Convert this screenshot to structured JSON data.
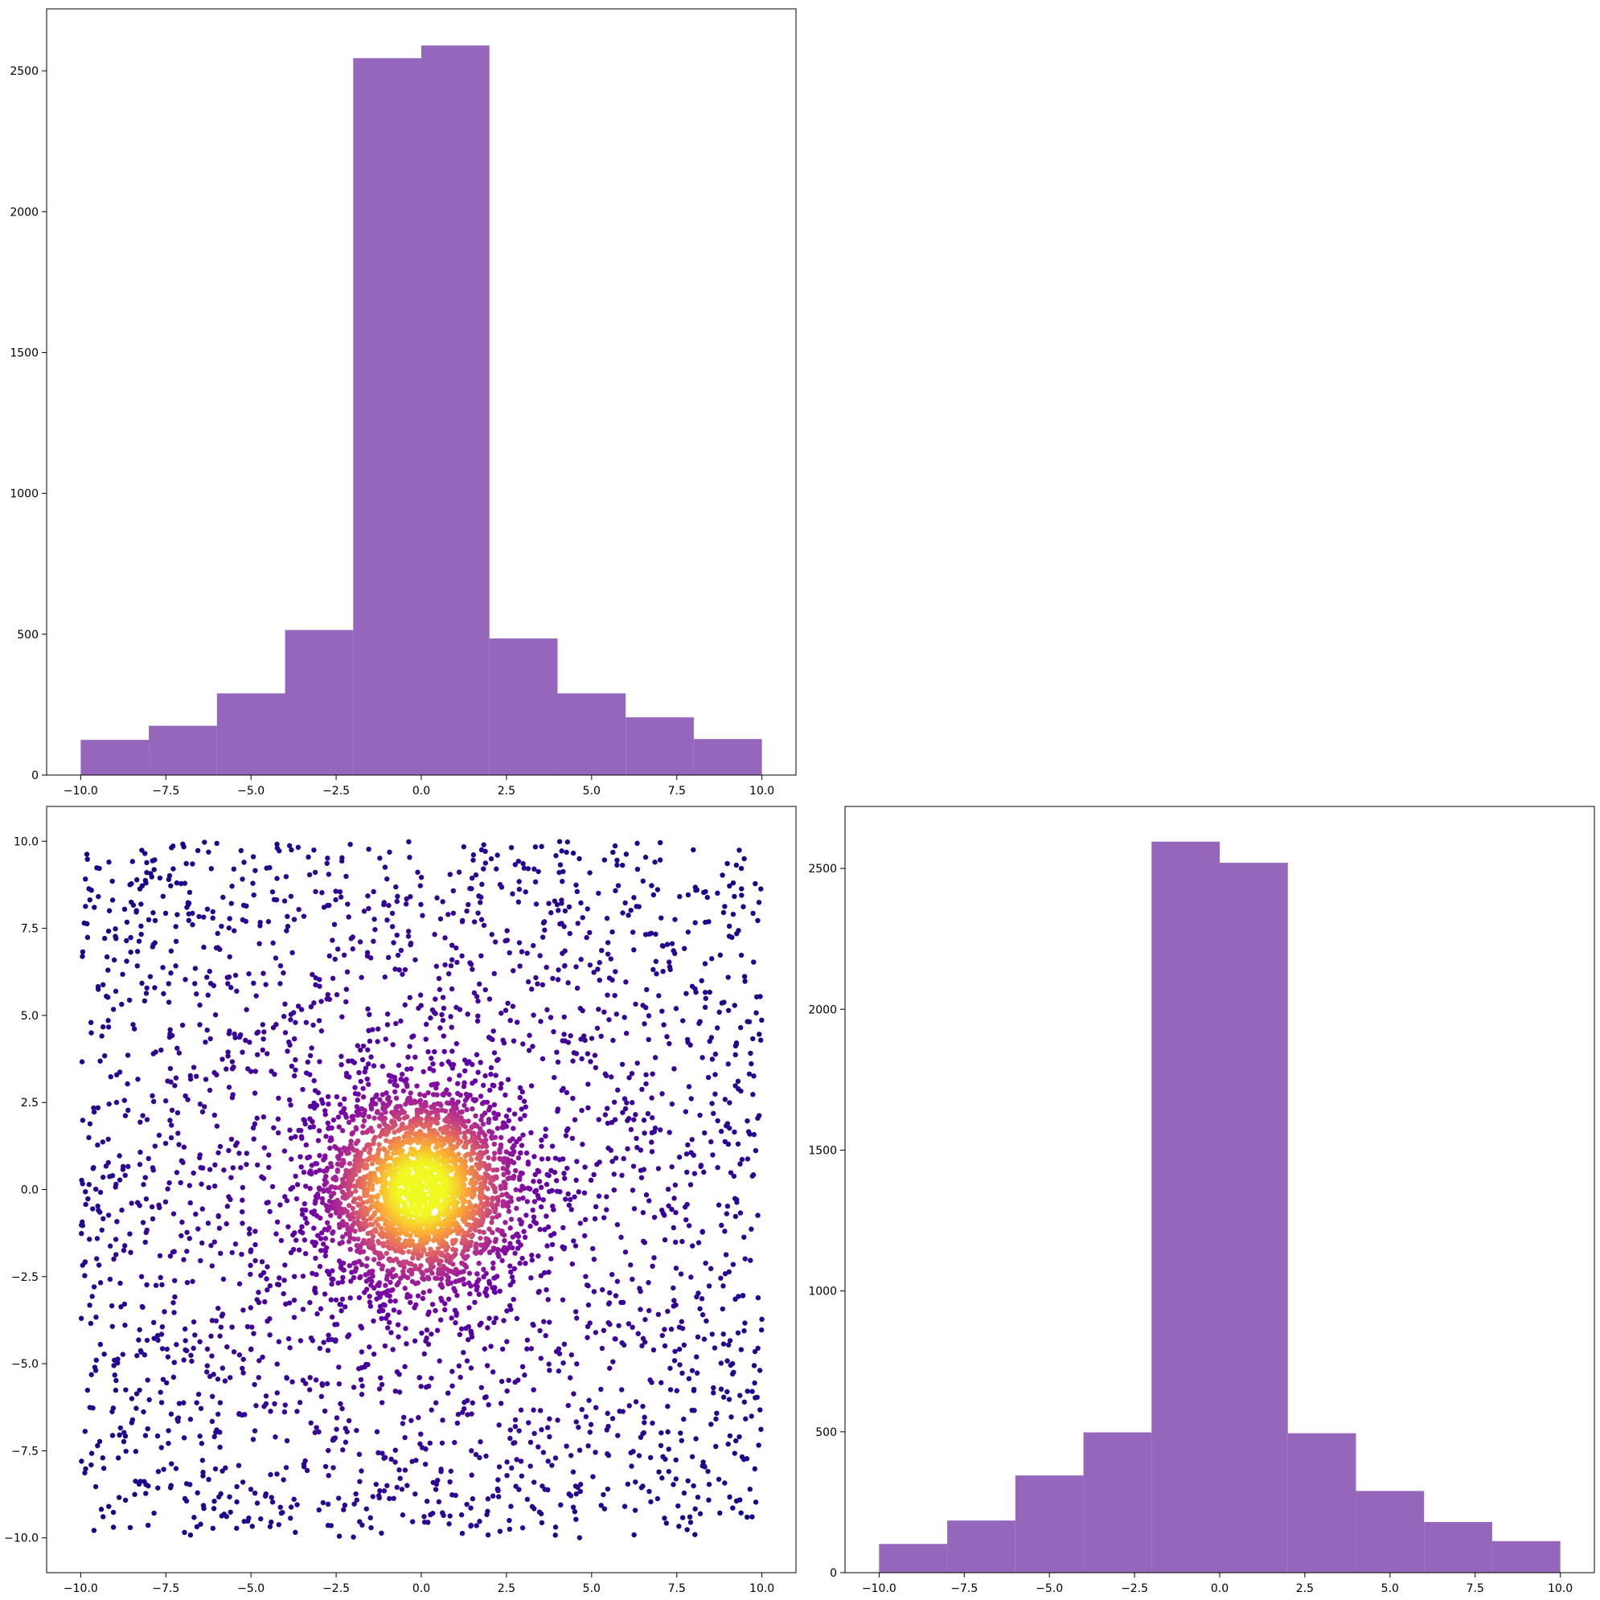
{
  "chart_data": [
    {
      "id": "hist-x",
      "type": "bar",
      "bin_edges": [
        -10,
        -8,
        -6,
        -4,
        -2,
        0,
        2,
        4,
        6,
        8,
        10
      ],
      "values": [
        125,
        175,
        290,
        515,
        2545,
        2590,
        485,
        290,
        205,
        128
      ],
      "color": "#9467bd",
      "xlim": [
        -11,
        11
      ],
      "ylim": [
        0,
        2720
      ],
      "xticks": [
        -10,
        -7.5,
        -5,
        -2.5,
        0,
        2.5,
        5,
        7.5,
        10
      ],
      "xtick_labels": [
        "−10.0",
        "−7.5",
        "−5.0",
        "−2.5",
        "0.0",
        "2.5",
        "5.0",
        "7.5",
        "10.0"
      ],
      "yticks": [
        0,
        500,
        1000,
        1500,
        2000,
        2500
      ],
      "ytick_labels": [
        "0",
        "500",
        "1000",
        "1500",
        "2000",
        "2500"
      ],
      "grid": false
    },
    {
      "id": "scatter-xy",
      "type": "scatter",
      "description_of_marks": "about 5000 points: dense Gaussian core centered at (0,0) plus uniform background over [-10,10]x[-10,10]; color by local density (plasma colormap, dark purple sparse to yellow dense)",
      "n_points": 5000,
      "cluster_center": [
        0,
        0
      ],
      "cluster_std": 1.5,
      "cluster_fraction": 0.5,
      "uniform_range": [
        -10,
        10
      ],
      "colormap": [
        "#0d0887",
        "#6a00a8",
        "#b12a90",
        "#e16462",
        "#fca636",
        "#f0f921"
      ],
      "xlim": [
        -11,
        11
      ],
      "ylim": [
        -11,
        11
      ],
      "xticks": [
        -10,
        -7.5,
        -5,
        -2.5,
        0,
        2.5,
        5,
        7.5,
        10
      ],
      "xtick_labels": [
        "−10.0",
        "−7.5",
        "−5.0",
        "−2.5",
        "0.0",
        "2.5",
        "5.0",
        "7.5",
        "10.0"
      ],
      "yticks": [
        -10,
        -7.5,
        -5,
        -2.5,
        0,
        2.5,
        5,
        7.5,
        10
      ],
      "ytick_labels": [
        "−10.0",
        "−7.5",
        "−5.0",
        "−2.5",
        "0.0",
        "2.5",
        "5.0",
        "7.5",
        "10.0"
      ],
      "grid": false
    },
    {
      "id": "hist-y",
      "type": "bar",
      "bin_edges": [
        -10,
        -8,
        -6,
        -4,
        -2,
        0,
        2,
        4,
        6,
        8,
        10
      ],
      "values": [
        102,
        185,
        345,
        498,
        2595,
        2520,
        495,
        290,
        180,
        112
      ],
      "color": "#9467bd",
      "xlim": [
        -11,
        11
      ],
      "ylim": [
        0,
        2720
      ],
      "xticks": [
        -10,
        -7.5,
        -5,
        -2.5,
        0,
        2.5,
        5,
        7.5,
        10
      ],
      "xtick_labels": [
        "−10.0",
        "−7.5",
        "−5.0",
        "−2.5",
        "0.0",
        "2.5",
        "5.0",
        "7.5",
        "10.0"
      ],
      "yticks": [
        0,
        500,
        1000,
        1500,
        2000,
        2500
      ],
      "ytick_labels": [
        "0",
        "500",
        "1000",
        "1500",
        "2000",
        "2500"
      ],
      "grid": false
    }
  ]
}
